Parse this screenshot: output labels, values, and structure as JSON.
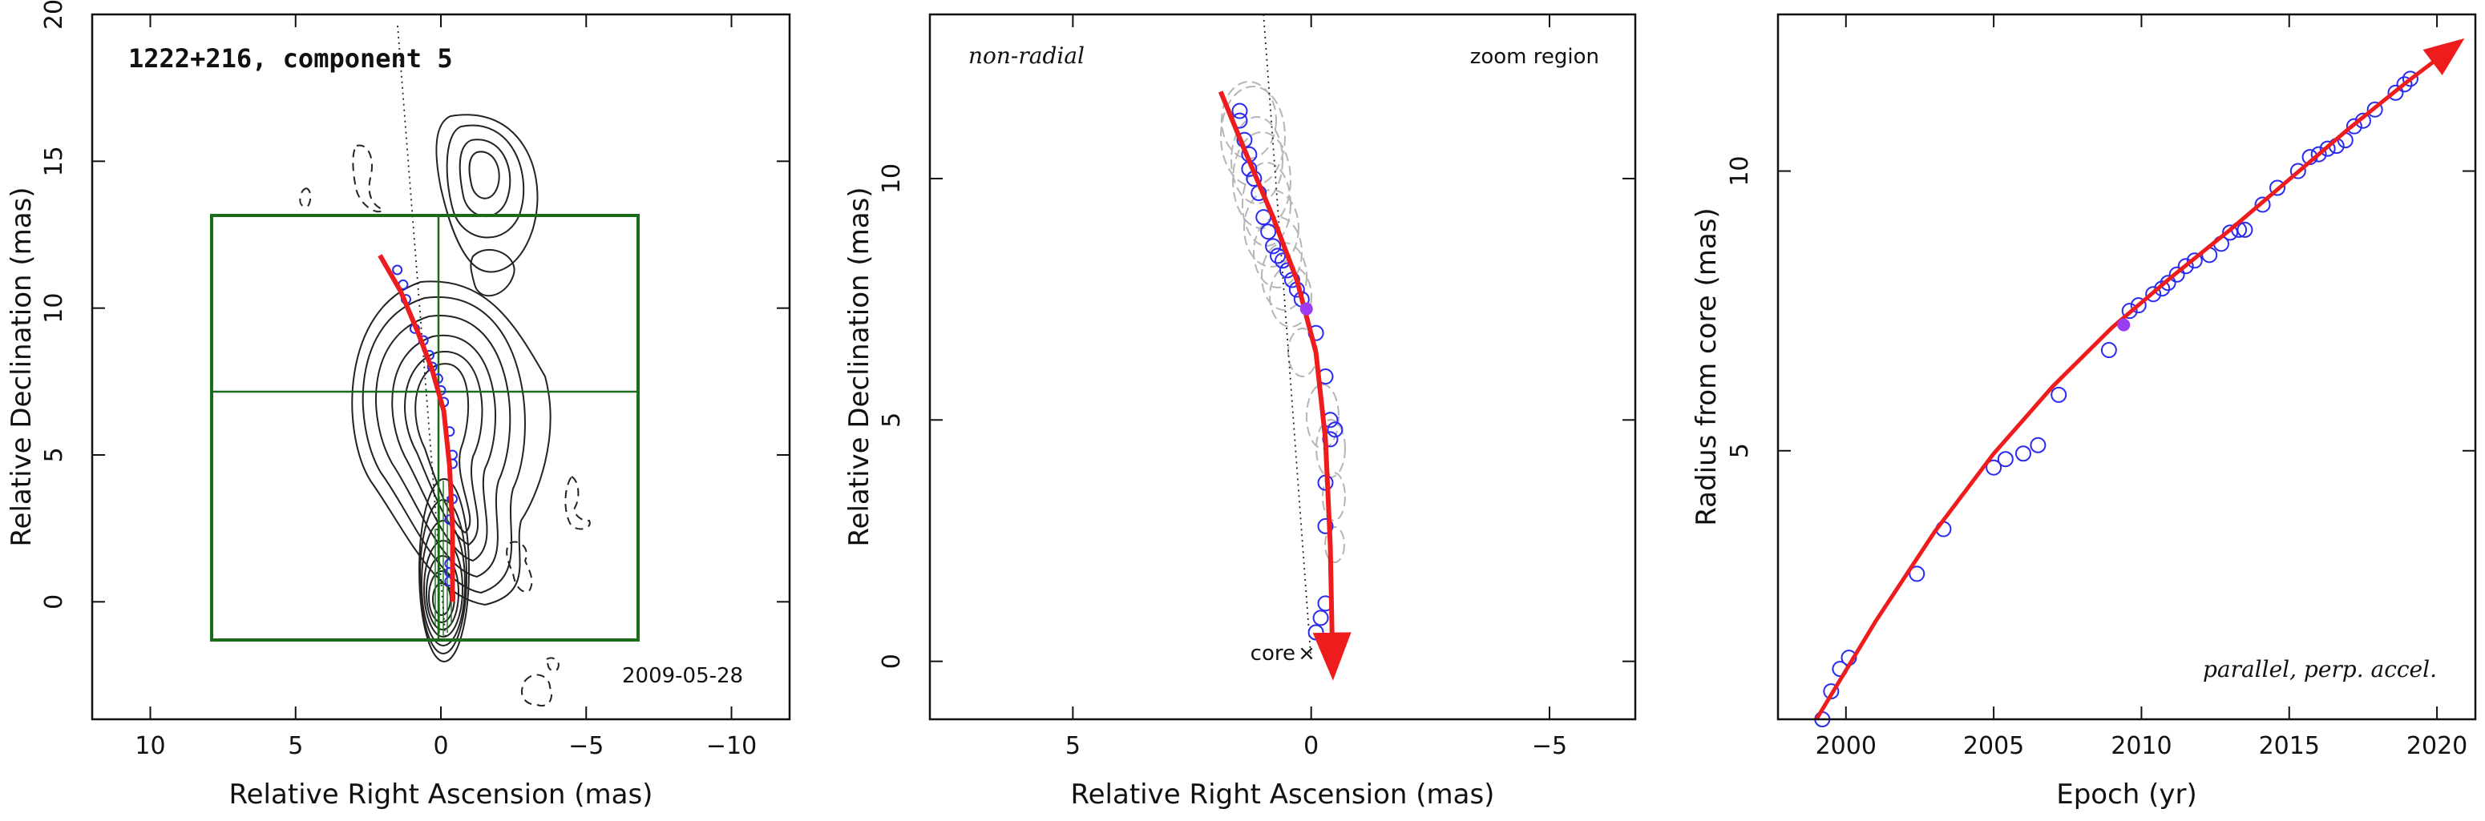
{
  "chart_data": [
    {
      "type": "scatter",
      "panel": "left",
      "title": "1222+216, component 5",
      "date_label": "2009-05-28",
      "xlabel": "Relative Right Ascension (mas)",
      "ylabel": "Relative Declination (mas)",
      "xlim": [
        12,
        -12
      ],
      "ylim": [
        -4,
        20
      ],
      "xticks": [
        10,
        5,
        0,
        -5,
        -10
      ],
      "yticks": [
        0,
        5,
        10,
        15,
        20
      ],
      "zoom_box": {
        "x": [
          8,
          -6.6
        ],
        "y": [
          -1.2,
          13.4
        ]
      },
      "crosshair": {
        "x": 0.1,
        "y": 7.3
      },
      "track_points": [
        {
          "x": 1.5,
          "y": 11.3
        },
        {
          "x": 1.3,
          "y": 10.8
        },
        {
          "x": 1.2,
          "y": 10.3
        },
        {
          "x": 0.9,
          "y": 9.3
        },
        {
          "x": 0.6,
          "y": 8.9
        },
        {
          "x": 0.4,
          "y": 8.4
        },
        {
          "x": 0.3,
          "y": 8.0
        },
        {
          "x": 0.1,
          "y": 7.6
        },
        {
          "x": 0.0,
          "y": 7.2
        },
        {
          "x": -0.1,
          "y": 6.8
        },
        {
          "x": -0.3,
          "y": 5.8
        },
        {
          "x": -0.4,
          "y": 5.0
        },
        {
          "x": -0.4,
          "y": 4.7
        },
        {
          "x": -0.4,
          "y": 3.5
        },
        {
          "x": -0.3,
          "y": 2.8
        },
        {
          "x": -0.3,
          "y": 1.3
        },
        {
          "x": -0.3,
          "y": 1.0
        },
        {
          "x": -0.3,
          "y": 0.7
        }
      ],
      "fit_curve": [
        [
          2.1,
          11.8
        ],
        [
          1.4,
          10.6
        ],
        [
          0.8,
          9.2
        ],
        [
          0.3,
          7.9
        ],
        [
          -0.1,
          6.5
        ],
        [
          -0.3,
          4.6
        ],
        [
          -0.4,
          2.5
        ],
        [
          -0.4,
          0.0
        ]
      ]
    },
    {
      "type": "scatter",
      "panel": "middle",
      "annotation_left": "non-radial",
      "annotation_right": "zoom region",
      "core_label": "core",
      "xlabel": "Relative Right Ascension (mas)",
      "ylabel": "Relative Declination (mas)",
      "xlim": [
        8,
        -6.8
      ],
      "ylim": [
        -1.2,
        13.4
      ],
      "xticks": [
        5,
        0,
        -5
      ],
      "yticks": [
        0,
        5,
        10
      ],
      "track_points": [
        {
          "x": 1.5,
          "y": 11.4
        },
        {
          "x": 1.5,
          "y": 11.2
        },
        {
          "x": 1.4,
          "y": 10.8
        },
        {
          "x": 1.3,
          "y": 10.5
        },
        {
          "x": 1.3,
          "y": 10.2
        },
        {
          "x": 1.2,
          "y": 10.0
        },
        {
          "x": 1.1,
          "y": 9.7
        },
        {
          "x": 1.0,
          "y": 9.2
        },
        {
          "x": 0.9,
          "y": 8.9
        },
        {
          "x": 0.8,
          "y": 8.6
        },
        {
          "x": 0.7,
          "y": 8.4
        },
        {
          "x": 0.6,
          "y": 8.3
        },
        {
          "x": 0.5,
          "y": 8.1
        },
        {
          "x": 0.4,
          "y": 7.9
        },
        {
          "x": 0.3,
          "y": 7.7
        },
        {
          "x": 0.2,
          "y": 7.5
        },
        {
          "x": -0.1,
          "y": 6.8
        },
        {
          "x": -0.3,
          "y": 5.9
        },
        {
          "x": -0.4,
          "y": 5.0
        },
        {
          "x": -0.5,
          "y": 4.8
        },
        {
          "x": -0.4,
          "y": 4.6
        },
        {
          "x": -0.3,
          "y": 3.7
        },
        {
          "x": -0.3,
          "y": 2.8
        },
        {
          "x": -0.3,
          "y": 1.2
        },
        {
          "x": -0.2,
          "y": 0.9
        },
        {
          "x": -0.1,
          "y": 0.6
        }
      ],
      "highlight_point": {
        "x": 0.1,
        "y": 7.3
      },
      "fit_curve": [
        [
          1.9,
          11.8
        ],
        [
          1.4,
          10.6
        ],
        [
          0.8,
          9.2
        ],
        [
          0.3,
          7.9
        ],
        [
          -0.1,
          6.4
        ],
        [
          -0.3,
          4.6
        ],
        [
          -0.4,
          2.4
        ],
        [
          -0.45,
          0.0
        ]
      ],
      "dotted_line": [
        [
          1.0,
          13.4
        ],
        [
          0.0,
          0.0
        ]
      ]
    },
    {
      "type": "scatter",
      "panel": "right",
      "annotation": "parallel, perp. accel.",
      "xlabel": "Epoch (yr)",
      "ylabel": "Radius from core (mas)",
      "xlim": [
        1997.7,
        2021.3
      ],
      "ylim": [
        0.2,
        12.8
      ],
      "xticks": [
        2000,
        2005,
        2010,
        2015,
        2020
      ],
      "yticks": [
        5,
        10
      ],
      "x": [
        1999.2,
        1999.5,
        1999.8,
        2000.1,
        2002.4,
        2003.3,
        2005.0,
        2005.4,
        2006.0,
        2006.5,
        2007.2,
        2008.9,
        2009.6,
        2009.9,
        2010.4,
        2010.7,
        2010.9,
        2011.2,
        2011.5,
        2011.8,
        2012.3,
        2012.7,
        2013.0,
        2013.3,
        2013.5,
        2014.1,
        2014.6,
        2015.3,
        2015.7,
        2016.0,
        2016.3,
        2016.6,
        2016.9,
        2017.2,
        2017.5,
        2017.9,
        2018.6,
        2018.9,
        2019.1
      ],
      "y": [
        0.2,
        0.7,
        1.1,
        1.3,
        2.8,
        3.6,
        4.7,
        4.85,
        4.95,
        5.1,
        6.0,
        6.8,
        7.5,
        7.6,
        7.8,
        7.9,
        8.0,
        8.15,
        8.3,
        8.4,
        8.5,
        8.7,
        8.9,
        8.95,
        8.95,
        9.4,
        9.7,
        10.0,
        10.25,
        10.3,
        10.4,
        10.45,
        10.55,
        10.8,
        10.9,
        11.1,
        11.4,
        11.55,
        11.65
      ],
      "highlight_point": {
        "x": 2009.4,
        "y": 7.25
      },
      "fit_curve": [
        [
          1999.0,
          0.2
        ],
        [
          2001.0,
          1.95
        ],
        [
          2003.0,
          3.55
        ],
        [
          2005.0,
          4.95
        ],
        [
          2007.0,
          6.15
        ],
        [
          2009.0,
          7.2
        ],
        [
          2011.0,
          8.1
        ],
        [
          2013.0,
          8.95
        ],
        [
          2015.0,
          9.85
        ],
        [
          2017.0,
          10.75
        ],
        [
          2019.0,
          11.6
        ],
        [
          2020.5,
          12.2
        ]
      ]
    }
  ]
}
